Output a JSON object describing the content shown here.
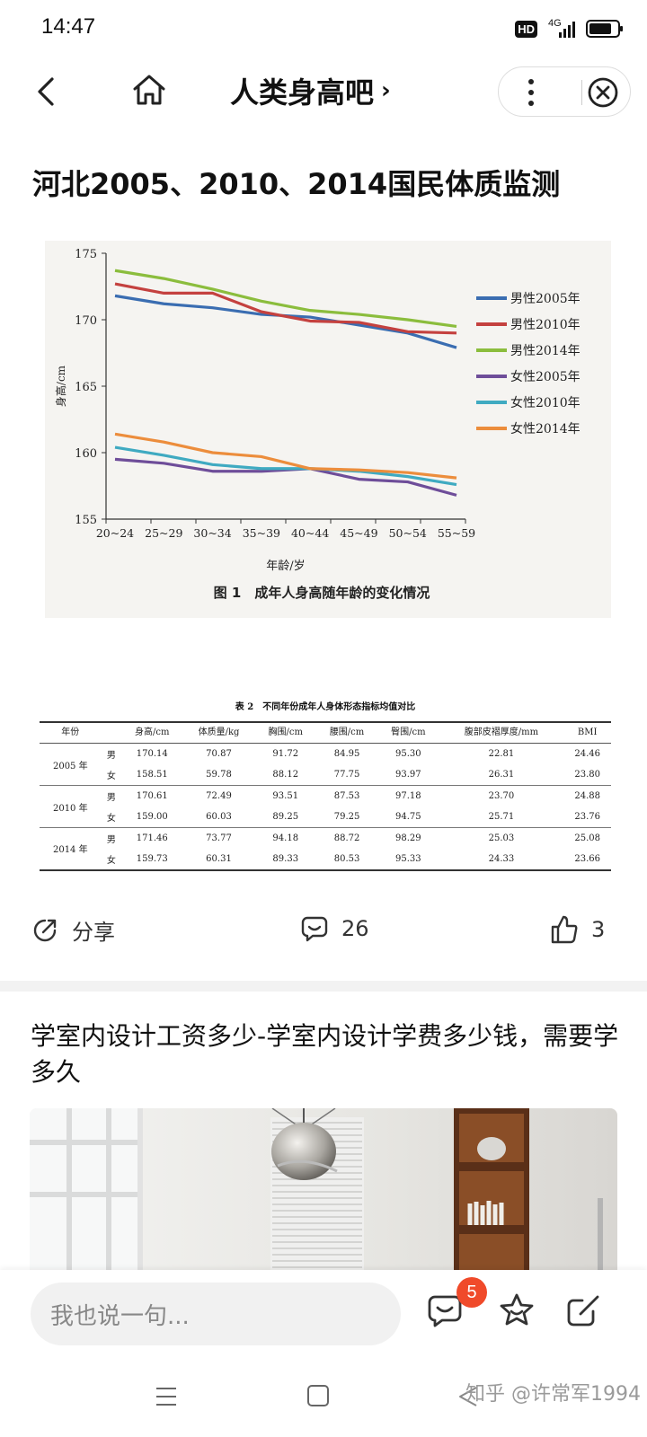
{
  "status": {
    "time": "14:47",
    "hd": "HD",
    "network": "4G",
    "battery_level": 0.8
  },
  "nav": {
    "forum_title": "人类身高吧",
    "title_chevron": "›"
  },
  "post": {
    "title": "河北2005、2010、2014国民体质监测",
    "figure": {
      "caption": "图 1　成年人身高随年龄的变化情况",
      "chart_data": {
        "type": "line",
        "xlabel": "年龄/岁",
        "ylabel": "身高/cm",
        "ylim": [
          155,
          175
        ],
        "yticks": [
          "155",
          "160",
          "165",
          "170",
          "175"
        ],
        "grid": false,
        "legend_position": "right",
        "categories": [
          "20~24",
          "25~29",
          "30~34",
          "35~39",
          "40~44",
          "45~49",
          "50~54",
          "55~59"
        ],
        "series": [
          {
            "name": "男性2005年",
            "color": "#3a6db1",
            "values": [
              171.8,
              171.2,
              170.9,
              170.4,
              170.2,
              169.6,
              169.0,
              167.9
            ]
          },
          {
            "name": "男性2010年",
            "color": "#c4413f",
            "values": [
              172.7,
              172.0,
              172.0,
              170.6,
              169.9,
              169.8,
              169.1,
              169.0
            ]
          },
          {
            "name": "男性2014年",
            "color": "#8bbd3d",
            "values": [
              173.7,
              173.1,
              172.3,
              171.4,
              170.7,
              170.4,
              170.0,
              169.5
            ]
          },
          {
            "name": "女性2005年",
            "color": "#6e4d99",
            "values": [
              159.5,
              159.2,
              158.6,
              158.6,
              158.8,
              158.0,
              157.8,
              156.8
            ]
          },
          {
            "name": "女性2010年",
            "color": "#3faac1",
            "values": [
              160.4,
              159.8,
              159.1,
              158.8,
              158.8,
              158.6,
              158.2,
              157.6
            ]
          },
          {
            "name": "女性2014年",
            "color": "#ec8d3c",
            "values": [
              161.4,
              160.8,
              160.0,
              159.7,
              158.8,
              158.7,
              158.5,
              158.1
            ]
          }
        ]
      }
    },
    "table": {
      "caption": "表 2　不同年份成年人身体形态指标均值对比",
      "headers": [
        "年份",
        "",
        "身高/cm",
        "体质量/kg",
        "胸围/cm",
        "腰围/cm",
        "臀围/cm",
        "腹部皮褶厚度/mm",
        "BMI"
      ],
      "groups": [
        {
          "year": "2005 年",
          "rows": [
            {
              "sex": "男",
              "values": [
                "170.14",
                "70.87",
                "91.72",
                "84.95",
                "95.30",
                "22.81",
                "24.46"
              ]
            },
            {
              "sex": "女",
              "values": [
                "158.51",
                "59.78",
                "88.12",
                "77.75",
                "93.97",
                "26.31",
                "23.80"
              ]
            }
          ]
        },
        {
          "year": "2010 年",
          "rows": [
            {
              "sex": "男",
              "values": [
                "170.61",
                "72.49",
                "93.51",
                "87.53",
                "97.18",
                "23.70",
                "24.88"
              ]
            },
            {
              "sex": "女",
              "values": [
                "159.00",
                "60.03",
                "89.25",
                "79.25",
                "94.75",
                "25.71",
                "23.76"
              ]
            }
          ]
        },
        {
          "year": "2014 年",
          "rows": [
            {
              "sex": "男",
              "values": [
                "171.46",
                "73.77",
                "94.18",
                "88.72",
                "98.29",
                "25.03",
                "25.08"
              ]
            },
            {
              "sex": "女",
              "values": [
                "159.73",
                "60.31",
                "89.33",
                "80.53",
                "95.33",
                "24.33",
                "23.66"
              ]
            }
          ]
        }
      ]
    },
    "actions": {
      "share_label": "分享",
      "comment_count": "26",
      "like_count": "3"
    }
  },
  "next_post": {
    "title": "学室内设计工资多少-学室内设计学费多少钱，需要学多久"
  },
  "comment_bar": {
    "placeholder": "我也说一句...",
    "badge_count": "5"
  },
  "watermark": "知乎 @许常军1994"
}
